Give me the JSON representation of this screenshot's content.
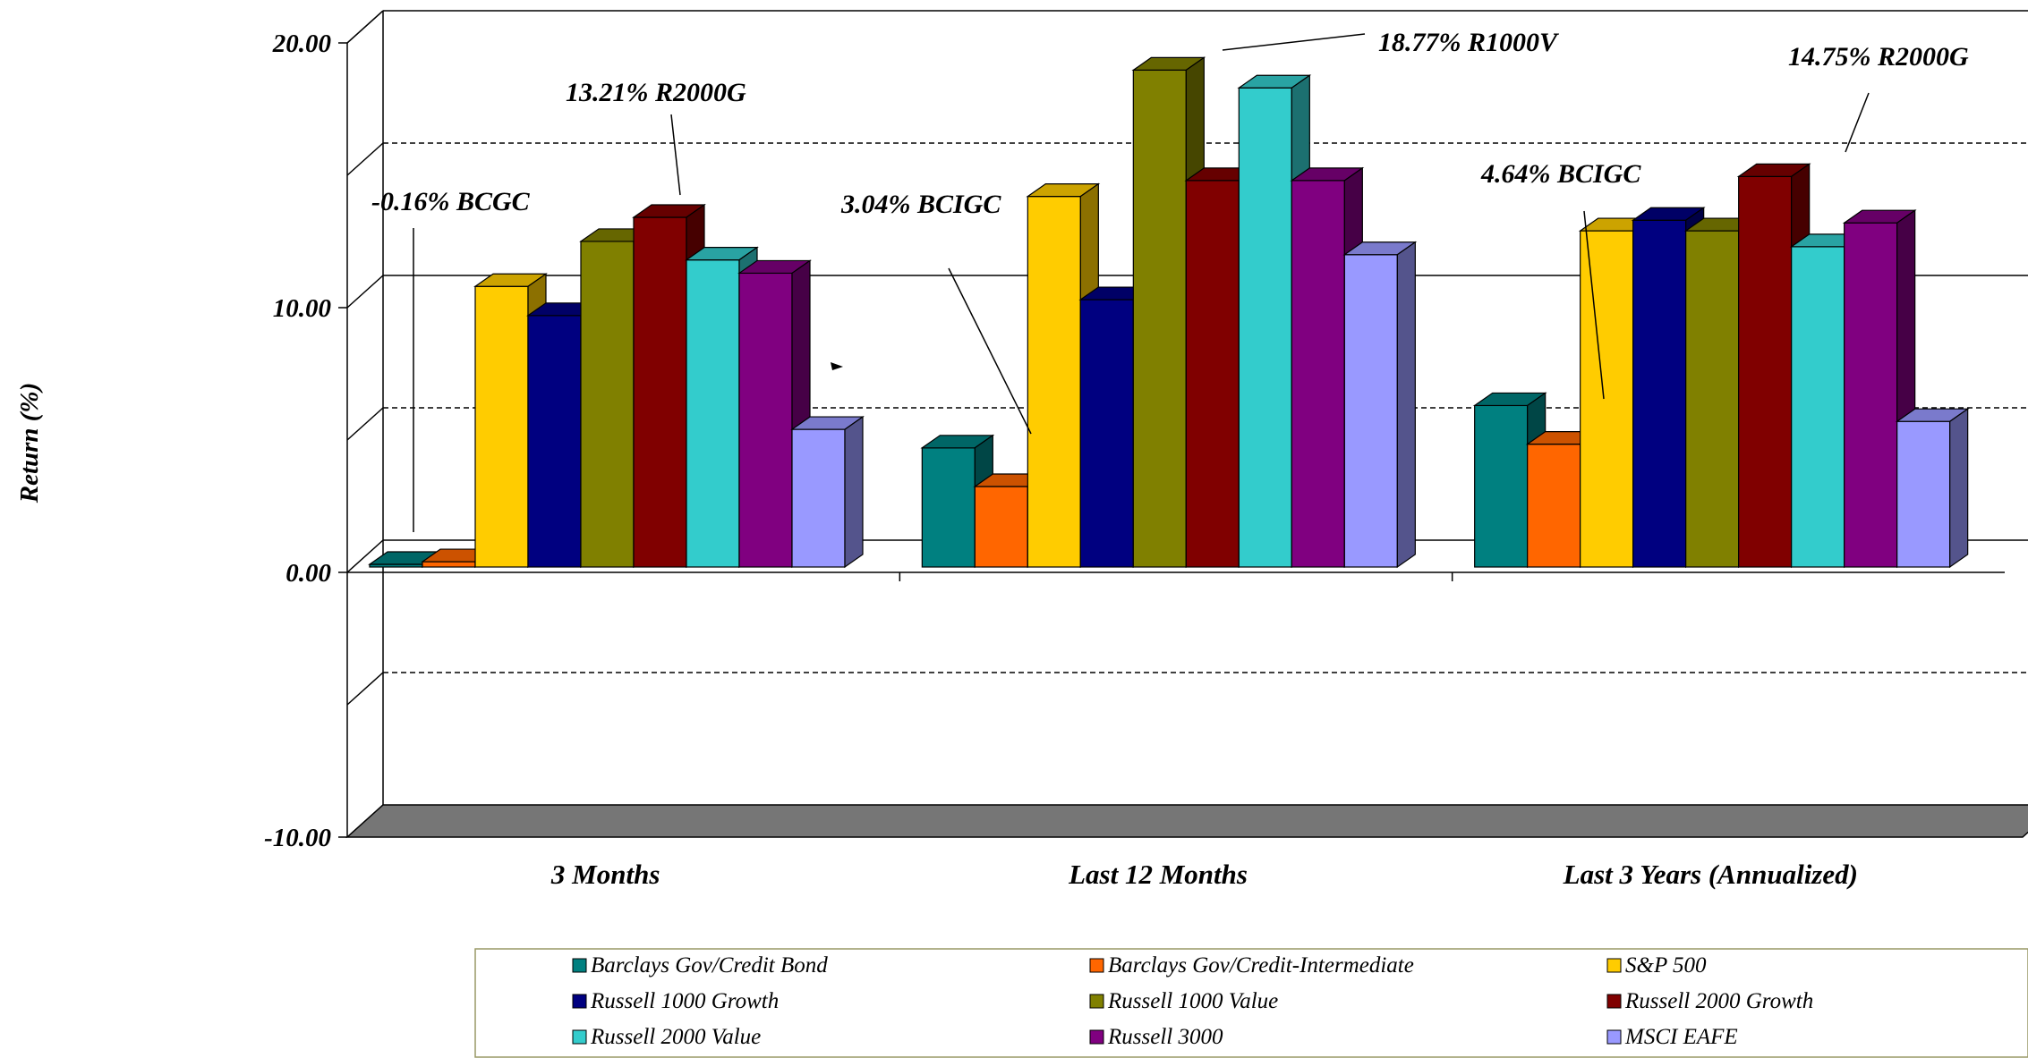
{
  "chart_data": {
    "type": "bar",
    "ylabel": "Return (%)",
    "ylim": [
      -10,
      20
    ],
    "yticks": [
      "20.00",
      "10.00",
      "0.00",
      "-10.00"
    ],
    "grid": true,
    "legend_position": "bottom",
    "categories": [
      "3 Months",
      "Last 12 Months",
      "Last 3 Years (Annualized)"
    ],
    "series": [
      {
        "name": "Barclays Gov/Credit Bond",
        "color": "#008080",
        "values": [
          -0.16,
          4.5,
          6.1
        ]
      },
      {
        "name": "Barclays Gov/Credit-Intermediate",
        "color": "#FF6600",
        "values": [
          0.2,
          3.04,
          4.64
        ]
      },
      {
        "name": "S&P 500",
        "color": "#FFCC00",
        "values": [
          10.6,
          14.0,
          12.7
        ]
      },
      {
        "name": "Russell 1000 Growth",
        "color": "#000080",
        "values": [
          9.5,
          10.1,
          13.1
        ]
      },
      {
        "name": "Russell 1000 Value",
        "color": "#808000",
        "values": [
          12.3,
          18.77,
          12.7
        ]
      },
      {
        "name": "Russell 2000 Growth",
        "color": "#800000",
        "values": [
          13.21,
          14.6,
          14.75
        ]
      },
      {
        "name": "Russell 2000 Value",
        "color": "#33CCCC",
        "values": [
          11.6,
          18.1,
          12.1
        ]
      },
      {
        "name": "Russell 3000",
        "color": "#800080",
        "values": [
          11.1,
          14.6,
          13.0
        ]
      },
      {
        "name": "MSCI EAFE",
        "color": "#9999FF",
        "values": [
          5.2,
          11.8,
          5.5
        ]
      }
    ],
    "annotations": [
      {
        "text": "-0.16% BCGC",
        "category": 0,
        "series": 0
      },
      {
        "text": "13.21% R2000G",
        "category": 0,
        "series": 5
      },
      {
        "text": "3.04% BCIGC",
        "category": 1,
        "series": 1
      },
      {
        "text": "18.77% R1000V",
        "category": 1,
        "series": 4
      },
      {
        "text": "4.64% BCIGC",
        "category": 2,
        "series": 1
      },
      {
        "text": "14.75% R2000G",
        "category": 2,
        "series": 5
      }
    ]
  }
}
